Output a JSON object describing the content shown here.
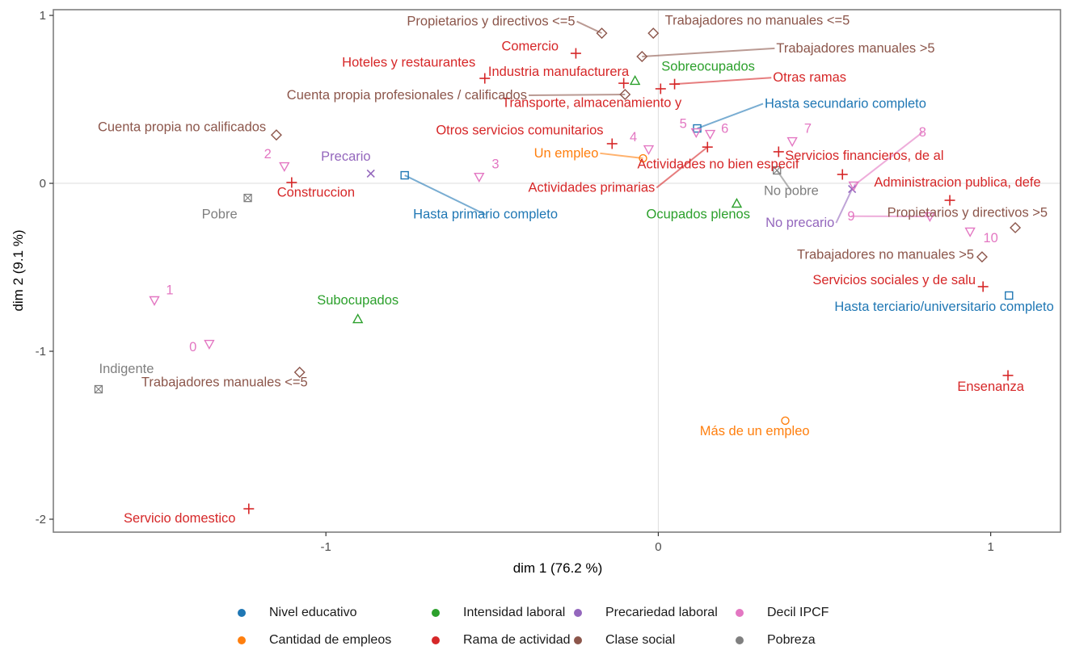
{
  "chart_data": {
    "type": "scatter",
    "title": "",
    "xlabel": "dim 1 (76.2 %)",
    "ylabel": "dim 2 (9.1 %)",
    "xlim": [
      -1.82,
      1.21
    ],
    "ylim": [
      -2.077,
      1.034
    ],
    "xticks": [
      -1,
      0,
      1
    ],
    "yticks": [
      -2,
      -1,
      0,
      1
    ],
    "xtick_labels": [
      "-1",
      "0",
      "1"
    ],
    "ytick_labels": [
      "-2",
      "-1",
      "0",
      "1"
    ],
    "grid": "zero-lines only",
    "legend_position": "bottom",
    "groups": [
      {
        "name": "Nivel educativo",
        "color": "#1f77b4",
        "shape": "square"
      },
      {
        "name": "Cantidad de empleos",
        "color": "#ff7f0e",
        "shape": "circle"
      },
      {
        "name": "Intensidad laboral",
        "color": "#2ca02c",
        "shape": "triangle-up"
      },
      {
        "name": "Rama de actividad",
        "color": "#d62728",
        "shape": "plus"
      },
      {
        "name": "Precariedad laboral",
        "color": "#9467bd",
        "shape": "cross"
      },
      {
        "name": "Clase social",
        "color": "#8c564b",
        "shape": "diamond"
      },
      {
        "name": "Decil IPCF",
        "color": "#e377c2",
        "shape": "triangle-down"
      },
      {
        "name": "Pobreza",
        "color": "#7f7f7f",
        "shape": "square-cross"
      }
    ],
    "legend_order": [
      "Nivel educativo",
      "Intensidad laboral",
      "Precariedad laboral",
      "Decil IPCF",
      "Cantidad de empleos",
      "Rama de actividad",
      "Clase social",
      "Pobreza"
    ],
    "points": [
      {
        "label": "Hasta primario completo",
        "group": 0,
        "x": -0.763,
        "y": 0.048,
        "lx": -0.52,
        "ly": -0.21,
        "anchor": "middle",
        "seg": true
      },
      {
        "label": "Hasta secundario completo",
        "group": 0,
        "x": 0.117,
        "y": 0.327,
        "lx": 0.32,
        "ly": 0.45,
        "anchor": "start",
        "seg": true
      },
      {
        "label": "Hasta terciario/universitario completo",
        "group": 0,
        "x": 1.055,
        "y": -0.668,
        "lx": 1.19,
        "ly": -0.76,
        "anchor": "end",
        "seg": false
      },
      {
        "label": "Un empleo",
        "group": 1,
        "x": -0.046,
        "y": 0.149,
        "lx": -0.18,
        "ly": 0.155,
        "anchor": "end",
        "seg": true
      },
      {
        "label": "Más de un empleo",
        "group": 1,
        "x": 0.382,
        "y": -1.413,
        "lx": 0.29,
        "ly": -1.5,
        "anchor": "middle",
        "seg": false
      },
      {
        "label": "Sobreocupados",
        "group": 2,
        "x": -0.07,
        "y": 0.611,
        "lx": 0.15,
        "ly": 0.67,
        "anchor": "middle",
        "seg": false
      },
      {
        "label": "Ocupados plenos",
        "group": 2,
        "x": 0.236,
        "y": -0.12,
        "lx": 0.12,
        "ly": -0.21,
        "anchor": "middle",
        "seg": false
      },
      {
        "label": "Subocupados",
        "group": 2,
        "x": -0.904,
        "y": -0.808,
        "lx": -0.904,
        "ly": -0.72,
        "anchor": "middle",
        "seg": false
      },
      {
        "label": "Precario",
        "group": 4,
        "x": -0.865,
        "y": 0.058,
        "lx": -0.94,
        "ly": 0.135,
        "anchor": "middle",
        "seg": false
      },
      {
        "label": "No precario",
        "group": 4,
        "x": 0.583,
        "y": -0.034,
        "lx": 0.53,
        "ly": -0.26,
        "anchor": "end",
        "seg": true
      },
      {
        "label": "0",
        "group": 6,
        "x": -1.351,
        "y": -0.957,
        "lx": -1.4,
        "ly": -1.0,
        "anchor": "middle",
        "seg": false
      },
      {
        "label": "1",
        "group": 6,
        "x": -1.516,
        "y": -0.697,
        "lx": -1.47,
        "ly": -0.66,
        "anchor": "middle",
        "seg": false
      },
      {
        "label": "2",
        "group": 6,
        "x": -1.125,
        "y": 0.101,
        "lx": -1.175,
        "ly": 0.15,
        "anchor": "middle",
        "seg": false
      },
      {
        "label": "3",
        "group": 6,
        "x": -0.539,
        "y": 0.038,
        "lx": -0.49,
        "ly": 0.09,
        "anchor": "middle",
        "seg": false
      },
      {
        "label": "4",
        "group": 6,
        "x": -0.029,
        "y": 0.202,
        "lx": -0.075,
        "ly": 0.25,
        "anchor": "middle",
        "seg": false
      },
      {
        "label": "5",
        "group": 6,
        "x": 0.114,
        "y": 0.303,
        "lx": 0.075,
        "ly": 0.33,
        "anchor": "middle",
        "seg": false
      },
      {
        "label": "6",
        "group": 6,
        "x": 0.156,
        "y": 0.293,
        "lx": 0.2,
        "ly": 0.3,
        "anchor": "middle",
        "seg": false
      },
      {
        "label": "7",
        "group": 6,
        "x": 0.403,
        "y": 0.25,
        "lx": 0.45,
        "ly": 0.3,
        "anchor": "middle",
        "seg": false
      },
      {
        "label": "8",
        "group": 6,
        "x": 0.588,
        "y": -0.014,
        "lx": 0.795,
        "ly": 0.28,
        "anchor": "middle",
        "seg": true
      },
      {
        "label": "9",
        "group": 6,
        "x": 0.817,
        "y": -0.197,
        "lx": 0.58,
        "ly": -0.22,
        "anchor": "middle",
        "seg": true
      },
      {
        "label": "10",
        "group": 6,
        "x": 0.938,
        "y": -0.288,
        "lx": 1.0,
        "ly": -0.35,
        "anchor": "middle",
        "seg": false
      },
      {
        "label": "Comercio",
        "group": 3,
        "x": -0.248,
        "y": 0.774,
        "lx": -0.3,
        "ly": 0.79,
        "anchor": "end",
        "seg": false
      },
      {
        "label": "Hoteles y restaurantes",
        "group": 3,
        "x": -0.522,
        "y": 0.625,
        "lx": -0.55,
        "ly": 0.695,
        "anchor": "end",
        "seg": false
      },
      {
        "label": "Industria manufacturera",
        "group": 3,
        "x": -0.104,
        "y": 0.596,
        "lx": -0.3,
        "ly": 0.64,
        "anchor": "middle",
        "seg": false
      },
      {
        "label": "Otras ramas",
        "group": 3,
        "x": 0.049,
        "y": 0.591,
        "lx": 0.345,
        "ly": 0.605,
        "anchor": "start",
        "seg": true
      },
      {
        "label": "Transporte, almacenamiento y",
        "group": 3,
        "x": 0.007,
        "y": 0.563,
        "lx": -0.2,
        "ly": 0.455,
        "anchor": "middle",
        "seg": false
      },
      {
        "label": "Otros servicios comunitarios",
        "group": 3,
        "x": -0.139,
        "y": 0.236,
        "lx": -0.165,
        "ly": 0.29,
        "anchor": "end",
        "seg": false
      },
      {
        "label": "Actividades primarias",
        "group": 3,
        "x": 0.148,
        "y": 0.216,
        "lx": -0.01,
        "ly": -0.05,
        "anchor": "end",
        "seg": true
      },
      {
        "label": "Servicios financieros, de al",
        "group": 3,
        "x": 0.362,
        "y": 0.188,
        "lx": 0.62,
        "ly": 0.14,
        "anchor": "middle",
        "seg": false
      },
      {
        "label": "Actividades no bien especif",
        "group": 3,
        "x": 0.554,
        "y": 0.053,
        "lx": 0.18,
        "ly": 0.09,
        "anchor": "middle",
        "seg": false
      },
      {
        "label": "Construccion",
        "group": 3,
        "x": -1.103,
        "y": 0.005,
        "lx": -1.03,
        "ly": -0.08,
        "anchor": "middle",
        "seg": false
      },
      {
        "label": "Administracion publica, defe",
        "group": 3,
        "x": 0.877,
        "y": -0.101,
        "lx": 0.9,
        "ly": -0.02,
        "anchor": "middle",
        "seg": false
      },
      {
        "label": "Servicios sociales y de salu",
        "group": 3,
        "x": 0.977,
        "y": -0.615,
        "lx": 0.955,
        "ly": -0.6,
        "anchor": "end",
        "seg": false
      },
      {
        "label": "Ensenanza",
        "group": 3,
        "x": 1.052,
        "y": -1.144,
        "lx": 1.0,
        "ly": -1.235,
        "anchor": "middle",
        "seg": false
      },
      {
        "label": "Servicio domestico",
        "group": 3,
        "x": -1.232,
        "y": -1.938,
        "lx": -1.44,
        "ly": -2.02,
        "anchor": "middle",
        "seg": false
      },
      {
        "label": "Propietarios y directivos <=5",
        "group": 5,
        "x": -0.17,
        "y": 0.894,
        "lx": -0.25,
        "ly": 0.94,
        "anchor": "end",
        "seg": true
      },
      {
        "label": "Trabajadores no manuales <=5",
        "group": 5,
        "x": -0.015,
        "y": 0.894,
        "lx": 0.02,
        "ly": 0.945,
        "anchor": "start",
        "seg": false
      },
      {
        "label": "Trabajadores manuales >5",
        "group": 5,
        "x": -0.049,
        "y": 0.755,
        "lx": 0.355,
        "ly": 0.78,
        "anchor": "start",
        "seg": true
      },
      {
        "label": "Cuenta propia profesionales / calificados",
        "group": 5,
        "x": -0.1,
        "y": 0.529,
        "lx": -0.395,
        "ly": 0.5,
        "anchor": "end",
        "seg": true
      },
      {
        "label": "Cuenta propia no calificados",
        "group": 5,
        "x": -1.149,
        "y": 0.288,
        "lx": -1.18,
        "ly": 0.31,
        "anchor": "end",
        "seg": false
      },
      {
        "label": "Propietarios y directivos >5",
        "group": 5,
        "x": 1.074,
        "y": -0.264,
        "lx": 0.93,
        "ly": -0.2,
        "anchor": "middle",
        "seg": false
      },
      {
        "label": "Trabajadores no manuales >5",
        "group": 5,
        "x": 0.974,
        "y": -0.438,
        "lx": 0.95,
        "ly": -0.45,
        "anchor": "end",
        "seg": false
      },
      {
        "label": "Trabajadores manuales <=5",
        "group": 5,
        "x": -1.079,
        "y": -1.125,
        "lx": -1.305,
        "ly": -1.21,
        "anchor": "middle",
        "seg": false
      },
      {
        "label": "No pobre",
        "group": 7,
        "x": 0.357,
        "y": 0.077,
        "lx": 0.4,
        "ly": -0.07,
        "anchor": "middle",
        "seg": true
      },
      {
        "label": "Pobre",
        "group": 7,
        "x": -1.235,
        "y": -0.087,
        "lx": -1.32,
        "ly": -0.21,
        "anchor": "middle",
        "seg": false
      },
      {
        "label": "Indigente",
        "group": 7,
        "x": -1.684,
        "y": -1.226,
        "lx": -1.6,
        "ly": -1.13,
        "anchor": "middle",
        "seg": false
      }
    ]
  }
}
